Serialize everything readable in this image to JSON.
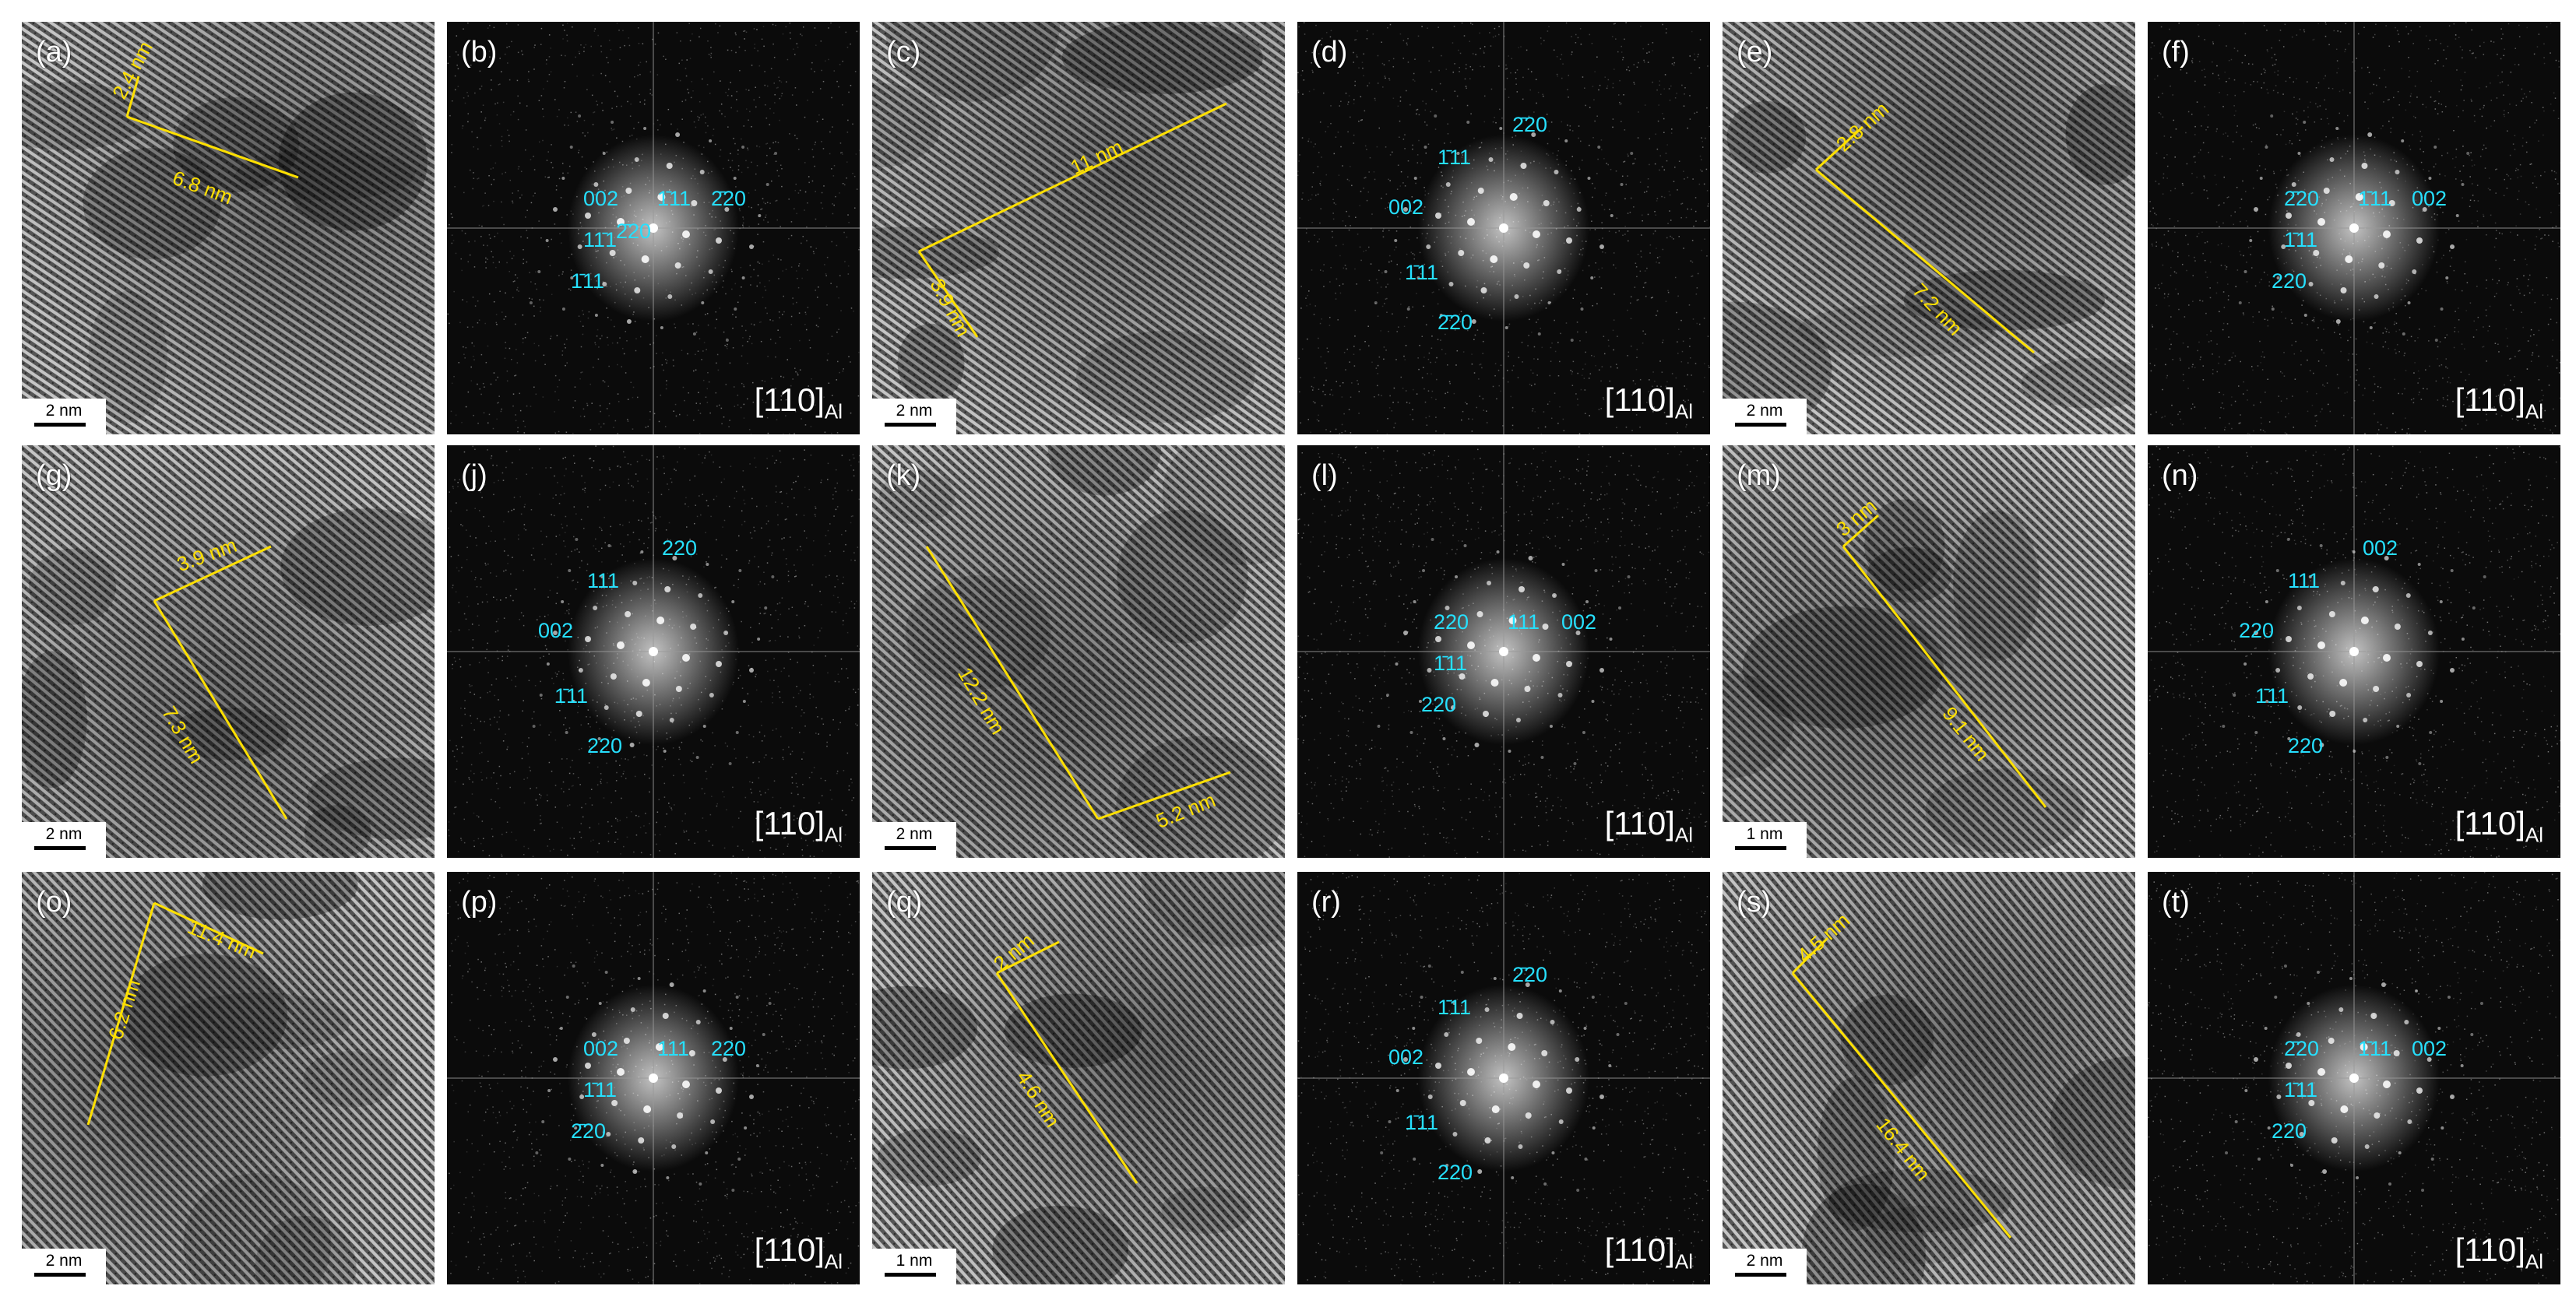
{
  "colors": {
    "measure": "#ffe000",
    "diffraction": "#26e0ff",
    "scale_bg": "#ffffff"
  },
  "panels": [
    {
      "label": "(a)",
      "type": "hrtem",
      "scale": "2 nm",
      "measures": [
        "2.4 nm",
        "6.8 nm"
      ]
    },
    {
      "label": "(b)",
      "type": "fft",
      "zone": "[110]",
      "zone_sub": "Al",
      "spots": [
        "002",
        "1̄11",
        "2̄20",
        "11̄1",
        "1̄11",
        "2̄20"
      ]
    },
    {
      "label": "(c)",
      "type": "hrtem",
      "scale": "2 nm",
      "measures": [
        "11 nm",
        "3.9 nm"
      ]
    },
    {
      "label": "(d)",
      "type": "fft",
      "zone": "[110]",
      "zone_sub": "Al",
      "spots": [
        "2̄20",
        "1̄11",
        "002",
        "1̄11",
        "2̄20"
      ]
    },
    {
      "label": "(e)",
      "type": "hrtem",
      "scale": "2 nm",
      "measures": [
        "2.8 nm",
        "7.2 nm"
      ]
    },
    {
      "label": "(f)",
      "type": "fft",
      "zone": "[110]",
      "zone_sub": "Al",
      "spots": [
        "2̄20",
        "1̄11",
        "002",
        "1̄11",
        "220"
      ]
    },
    {
      "label": "(g)",
      "type": "hrtem",
      "scale": "2 nm",
      "measures": [
        "3.9 nm",
        "7.3 nm"
      ]
    },
    {
      "label": "(j)",
      "type": "fft",
      "zone": "[110]",
      "zone_sub": "Al",
      "spots": [
        "220",
        "111",
        "002",
        "1̄11",
        "220"
      ]
    },
    {
      "label": "(k)",
      "type": "hrtem",
      "scale": "2 nm",
      "measures": [
        "12.2 nm",
        "5.2 nm"
      ]
    },
    {
      "label": "(l)",
      "type": "fft",
      "zone": "[110]",
      "zone_sub": "Al",
      "spots": [
        "220",
        "111",
        "002",
        "1̄11",
        "220"
      ]
    },
    {
      "label": "(m)",
      "type": "hrtem",
      "scale": "1 nm",
      "measures": [
        "3 nm",
        "9.1 nm"
      ]
    },
    {
      "label": "(n)",
      "type": "fft",
      "zone": "[110]",
      "zone_sub": "Al",
      "spots": [
        "002",
        "111",
        "220",
        "1̄11",
        "220"
      ]
    },
    {
      "label": "(o)",
      "type": "hrtem",
      "scale": "2 nm",
      "measures": [
        "11.4 nm",
        "6.2 nm"
      ]
    },
    {
      "label": "(p)",
      "type": "fft",
      "zone": "[110]",
      "zone_sub": "Al",
      "spots": [
        "002",
        "111",
        "220",
        "1̄11",
        "2̄20"
      ]
    },
    {
      "label": "(q)",
      "type": "hrtem",
      "scale": "1 nm",
      "measures": [
        "2 nm",
        "4.6 nm"
      ]
    },
    {
      "label": "(r)",
      "type": "fft",
      "zone": "[110]",
      "zone_sub": "Al",
      "spots": [
        "2̄20",
        "1̄11",
        "002",
        "1̄11",
        "220"
      ]
    },
    {
      "label": "(s)",
      "type": "hrtem",
      "scale": "2 nm",
      "measures": [
        "4.5 nm",
        "16.4 nm"
      ]
    },
    {
      "label": "(t)",
      "type": "fft",
      "zone": "[110]",
      "zone_sub": "Al",
      "spots": [
        "2̄20",
        "1̄11",
        "002",
        "1̄11",
        "220"
      ]
    }
  ]
}
